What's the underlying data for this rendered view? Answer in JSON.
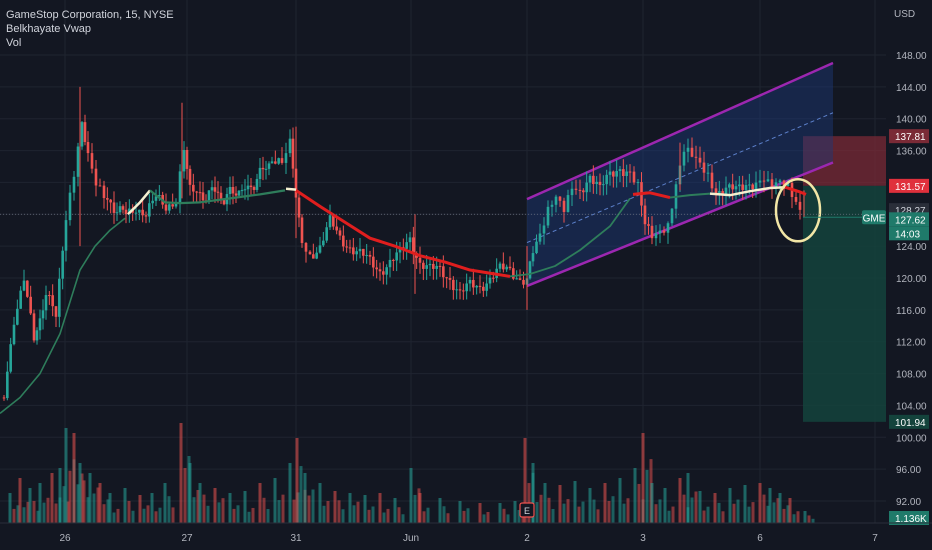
{
  "legend": {
    "title": "GameStop Corporation, 15, NYSE",
    "indicator1": "Belkhayate Vwap",
    "indicator2": "Vol"
  },
  "colors": {
    "background": "#131722",
    "grid": "#1f2430",
    "up": "#26a69a",
    "down": "#ef5350",
    "vwap_bull": "#2e7d5b",
    "vwap_bear": "#e01e1e",
    "vwap_neutral": "#f5f0d0",
    "channel": "#9c27b0",
    "channel_fill": "#1d3a7a",
    "risk_zone": "#7a2a36",
    "reward_zone": "#14433c",
    "price_tag": "#e0303c",
    "current_tag": "#1f7a6a",
    "highlight": "#f2e6a6"
  },
  "chart_data": {
    "type": "candlestick",
    "symbol": "GME",
    "timeframe": "15",
    "currency": "USD",
    "y_axis_ticks": [
      "148.00",
      "144.00",
      "140.00",
      "136.00",
      "132.00",
      "128.00",
      "124.00",
      "120.00",
      "116.00",
      "112.00",
      "108.00",
      "104.00",
      "100.00",
      "96.00",
      "92.00"
    ],
    "y_axis_tick_values": [
      148,
      144,
      140,
      136,
      132,
      128,
      124,
      120,
      116,
      112,
      108,
      104,
      100,
      96,
      92
    ],
    "ylim": [
      88.5,
      150.7
    ],
    "x_axis_ticks": [
      "26",
      "27",
      "31",
      "Jun",
      "2",
      "3",
      "6",
      "7"
    ],
    "price_labels": [
      {
        "label": "137.81",
        "value": 137.81,
        "role": "stop-loss"
      },
      {
        "label": "131.57",
        "value": 131.57,
        "role": "entry"
      },
      {
        "label": "128.27",
        "value": 128.27,
        "role": "last"
      },
      {
        "label": "127.62",
        "value": 127.62,
        "role": "current"
      },
      {
        "label": "14:03",
        "role": "countdown"
      },
      {
        "label": "101.94",
        "value": 101.94,
        "role": "take-profit"
      },
      {
        "label": "1.136K",
        "role": "volume"
      }
    ],
    "current_symbol_tag": "GME",
    "channel": {
      "upper": [
        [
          129.9,
          145.5
        ],
        [
          805,
          158.1
        ],
        [
          833,
          165.3
        ]
      ],
      "lower": [
        [
          129.9,
          130.3
        ],
        [
          805,
          147.8
        ],
        [
          833,
          156.5
        ]
      ],
      "start_price_upper": 129.9,
      "end_price_upper": 147.0,
      "start_price_lower": 119.0,
      "end_price_lower": 134.5
    },
    "earnings_marker": "E"
  }
}
